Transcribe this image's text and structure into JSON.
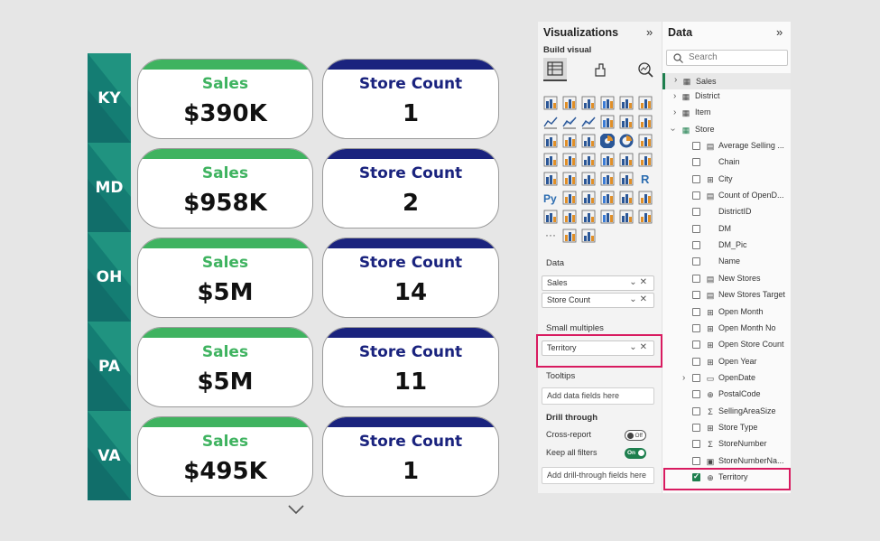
{
  "report": {
    "rows": [
      {
        "label": "KY",
        "sales_title": "Sales",
        "sales_value": "$390K",
        "count_title": "Store Count",
        "count_value": "1"
      },
      {
        "label": "MD",
        "sales_title": "Sales",
        "sales_value": "$958K",
        "count_title": "Store Count",
        "count_value": "2"
      },
      {
        "label": "OH",
        "sales_title": "Sales",
        "sales_value": "$5M",
        "count_title": "Store Count",
        "count_value": "14"
      },
      {
        "label": "PA",
        "sales_title": "Sales",
        "sales_value": "$5M",
        "count_title": "Store Count",
        "count_value": "11"
      },
      {
        "label": "VA",
        "sales_title": "Sales",
        "sales_value": "$495K",
        "count_title": "Store Count",
        "count_value": "1"
      }
    ],
    "colors": {
      "sales_accent": "#3fb360",
      "count_accent": "#1a237e",
      "row_header": "#147d73"
    }
  },
  "visualizations": {
    "title": "Visualizations",
    "collapse_icon": "double-chevron-right-icon",
    "build_visual_label": "Build visual",
    "more_label": "···",
    "sections": {
      "data": "Data",
      "small_multiples": "Small multiples",
      "tooltips": "Tooltips",
      "drill_through": "Drill through"
    },
    "data_wells": [
      "Sales",
      "Store Count"
    ],
    "small_multiples_well": "Territory",
    "tooltips_placeholder": "Add data fields here",
    "cross_report": {
      "label": "Cross-report",
      "state": "Off"
    },
    "keep_all_filters": {
      "label": "Keep all filters",
      "state": "On"
    },
    "drill_placeholder": "Add drill-through fields here"
  },
  "data_pane": {
    "title": "Data",
    "collapse_icon": "double-chevron-right-icon",
    "search_placeholder": "Search",
    "tables": {
      "sales": "Sales",
      "district": "District",
      "item": "Item",
      "store": "Store"
    },
    "fields": [
      {
        "name": "Average Selling ...",
        "icon": "calc",
        "checked": false
      },
      {
        "name": "Chain",
        "icon": "",
        "checked": false
      },
      {
        "name": "City",
        "icon": "hierarchy",
        "checked": false
      },
      {
        "name": "Count of OpenD...",
        "icon": "calc",
        "checked": false
      },
      {
        "name": "DistrictID",
        "icon": "",
        "checked": false
      },
      {
        "name": "DM",
        "icon": "",
        "checked": false
      },
      {
        "name": "DM_Pic",
        "icon": "",
        "checked": false
      },
      {
        "name": "Name",
        "icon": "",
        "checked": false
      },
      {
        "name": "New Stores",
        "icon": "calc",
        "checked": false
      },
      {
        "name": "New Stores Target",
        "icon": "calc",
        "checked": false
      },
      {
        "name": "Open Month",
        "icon": "hierarchy",
        "checked": false
      },
      {
        "name": "Open Month No",
        "icon": "hierarchy",
        "checked": false
      },
      {
        "name": "Open Store Count",
        "icon": "hierarchy",
        "checked": false
      },
      {
        "name": "Open Year",
        "icon": "hierarchy",
        "checked": false
      },
      {
        "name": "OpenDate",
        "icon": "calendar",
        "checked": false
      },
      {
        "name": "PostalCode",
        "icon": "globe",
        "checked": false
      },
      {
        "name": "SellingAreaSize",
        "icon": "sigma",
        "checked": false
      },
      {
        "name": "Store Type",
        "icon": "hierarchy",
        "checked": false
      },
      {
        "name": "StoreNumber",
        "icon": "sigma",
        "checked": false
      },
      {
        "name": "StoreNumberNa...",
        "icon": "id",
        "checked": false
      },
      {
        "name": "Territory",
        "icon": "globe",
        "checked": true
      }
    ]
  }
}
